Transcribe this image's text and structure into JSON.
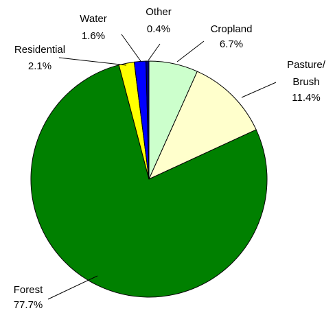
{
  "chart_data": {
    "type": "pie",
    "title": "",
    "start_angle_deg": 90,
    "direction": "clockwise",
    "slices": [
      {
        "label": "Cropland",
        "value": 6.7,
        "value_label": "6.7%",
        "color": "#ccffcc"
      },
      {
        "label": "Pasture/",
        "label2": "Brush",
        "value": 11.4,
        "value_label": "11.4%",
        "color": "#ffffcc"
      },
      {
        "label": "Forest",
        "value": 77.7,
        "value_label": "77.7%",
        "color": "#008000"
      },
      {
        "label": "Residential",
        "value": 2.1,
        "value_label": "2.1%",
        "color": "#ffff00"
      },
      {
        "label": "Water",
        "value": 1.6,
        "value_label": "1.6%",
        "color": "#0000ff"
      },
      {
        "label": "Other",
        "value": 0.4,
        "value_label": "0.4%",
        "color": "#000080"
      }
    ]
  }
}
